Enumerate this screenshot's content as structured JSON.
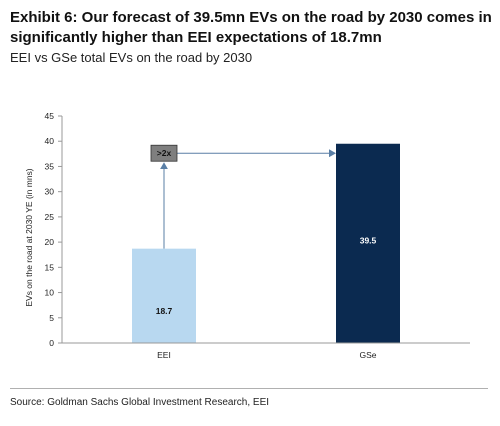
{
  "header": {
    "title": "Exhibit 6: Our forecast of 39.5mn EVs on the road by 2030 comes in significantly higher than EEI expectations of 18.7mn",
    "subtitle": "EEI vs GSe total EVs on the road by 2030"
  },
  "footer": {
    "source": "Source: Goldman Sachs Global Investment Research, EEI"
  },
  "colors": {
    "eei_bar": "#b8d8f0",
    "gse_bar": "#0b2a50",
    "arrow": "#5a7fa6",
    "axis": "#999999",
    "annotation_box": "#7f7f7f"
  },
  "chart_data": {
    "type": "bar",
    "title": "",
    "xlabel": "",
    "ylabel": "EVs on the road at 2030 YE (in mns)",
    "categories": [
      "EEI",
      "GSe"
    ],
    "values": [
      18.7,
      39.5
    ],
    "data_labels": [
      "18.7",
      "39.5"
    ],
    "ylim": [
      0,
      45
    ],
    "yticks": [
      0,
      5,
      10,
      15,
      20,
      25,
      30,
      35,
      40,
      45
    ],
    "grid": false,
    "annotation": {
      "text": ">2x",
      "from_category": "EEI",
      "to_category": "GSe",
      "at_value": 40
    }
  }
}
